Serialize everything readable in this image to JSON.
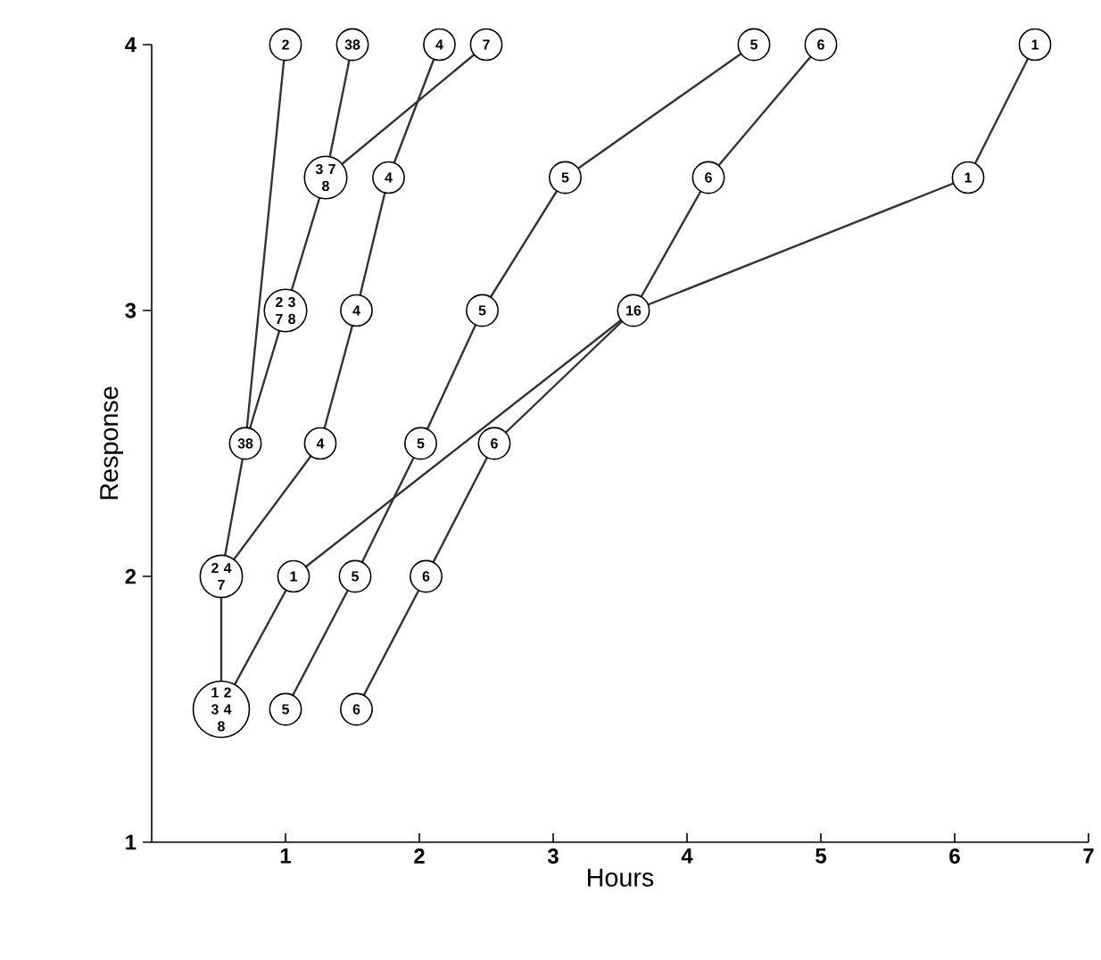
{
  "chart_data": {
    "type": "line",
    "marker": "circle",
    "xlabel": "Hours",
    "ylabel": "Response",
    "xlim": [
      0,
      7
    ],
    "ylim": [
      1,
      4
    ],
    "xticks": [
      1,
      2,
      3,
      4,
      5,
      6,
      7
    ],
    "yticks": [
      1,
      2,
      3,
      4
    ],
    "series": [
      {
        "color": "#333333",
        "x": [
          0.52,
          1.06,
          3.6,
          6.1,
          6.6
        ],
        "values": [
          1.5,
          2,
          3,
          3.5,
          4
        ]
      },
      {
        "color": "#333333",
        "x": [
          1.0,
          1.52,
          2.01,
          2.47,
          3.09,
          4.5
        ],
        "values": [
          1.5,
          2,
          2.5,
          3,
          3.5,
          4
        ]
      },
      {
        "color": "#333333",
        "x": [
          1.53,
          2.05,
          2.56,
          3.6,
          4.16,
          5.0
        ],
        "values": [
          1.5,
          2,
          2.5,
          3,
          3.5,
          4
        ]
      },
      {
        "color": "#333333",
        "x": [
          0.52,
          0.52,
          1.26,
          1.53,
          1.77,
          2.15
        ],
        "values": [
          1.5,
          2,
          2.5,
          3,
          3.5,
          4
        ]
      },
      {
        "color": "#333333",
        "x": [
          0.52,
          0.7,
          1.0,
          1.3,
          1.5
        ],
        "values": [
          2,
          2.5,
          3,
          3.5,
          4
        ]
      },
      {
        "color": "#333333",
        "x": [
          0.7,
          1.0
        ],
        "values": [
          2.5,
          4
        ]
      },
      {
        "color": "#333333",
        "x": [
          1.3,
          2.5
        ],
        "values": [
          3.5,
          4
        ]
      }
    ],
    "annotations": [
      {
        "text": "2",
        "x": 1.0,
        "y": 4
      },
      {
        "text": "38",
        "x": 1.5,
        "y": 4
      },
      {
        "text": "4",
        "x": 2.15,
        "y": 4
      },
      {
        "text": "7",
        "x": 2.5,
        "y": 4
      },
      {
        "text": "5",
        "x": 4.5,
        "y": 4
      },
      {
        "text": "6",
        "x": 5.0,
        "y": 4
      },
      {
        "text": "1",
        "x": 6.6,
        "y": 4
      },
      {
        "text": "3 7 8",
        "x": 1.3,
        "y": 3.5
      },
      {
        "text": "4",
        "x": 1.77,
        "y": 3.5
      },
      {
        "text": "5",
        "x": 3.09,
        "y": 3.5
      },
      {
        "text": "6",
        "x": 4.16,
        "y": 3.5
      },
      {
        "text": "1",
        "x": 6.1,
        "y": 3.5
      },
      {
        "text": "2 3 7 8",
        "x": 1.0,
        "y": 3
      },
      {
        "text": "4",
        "x": 1.53,
        "y": 3
      },
      {
        "text": "5",
        "x": 2.47,
        "y": 3
      },
      {
        "text": "16",
        "x": 3.6,
        "y": 3
      },
      {
        "text": "38",
        "x": 0.7,
        "y": 2.5
      },
      {
        "text": "4",
        "x": 1.26,
        "y": 2.5
      },
      {
        "text": "5",
        "x": 2.01,
        "y": 2.5
      },
      {
        "text": "6",
        "x": 2.56,
        "y": 2.5
      },
      {
        "text": "2 4 7",
        "x": 0.52,
        "y": 2
      },
      {
        "text": "1",
        "x": 1.06,
        "y": 2
      },
      {
        "text": "5",
        "x": 1.52,
        "y": 2
      },
      {
        "text": "6",
        "x": 2.05,
        "y": 2
      },
      {
        "text": "1 2 3 4 8",
        "x": 0.52,
        "y": 1.5
      },
      {
        "text": "5",
        "x": 1.0,
        "y": 1.5
      },
      {
        "text": "6",
        "x": 1.53,
        "y": 1.5
      }
    ]
  }
}
